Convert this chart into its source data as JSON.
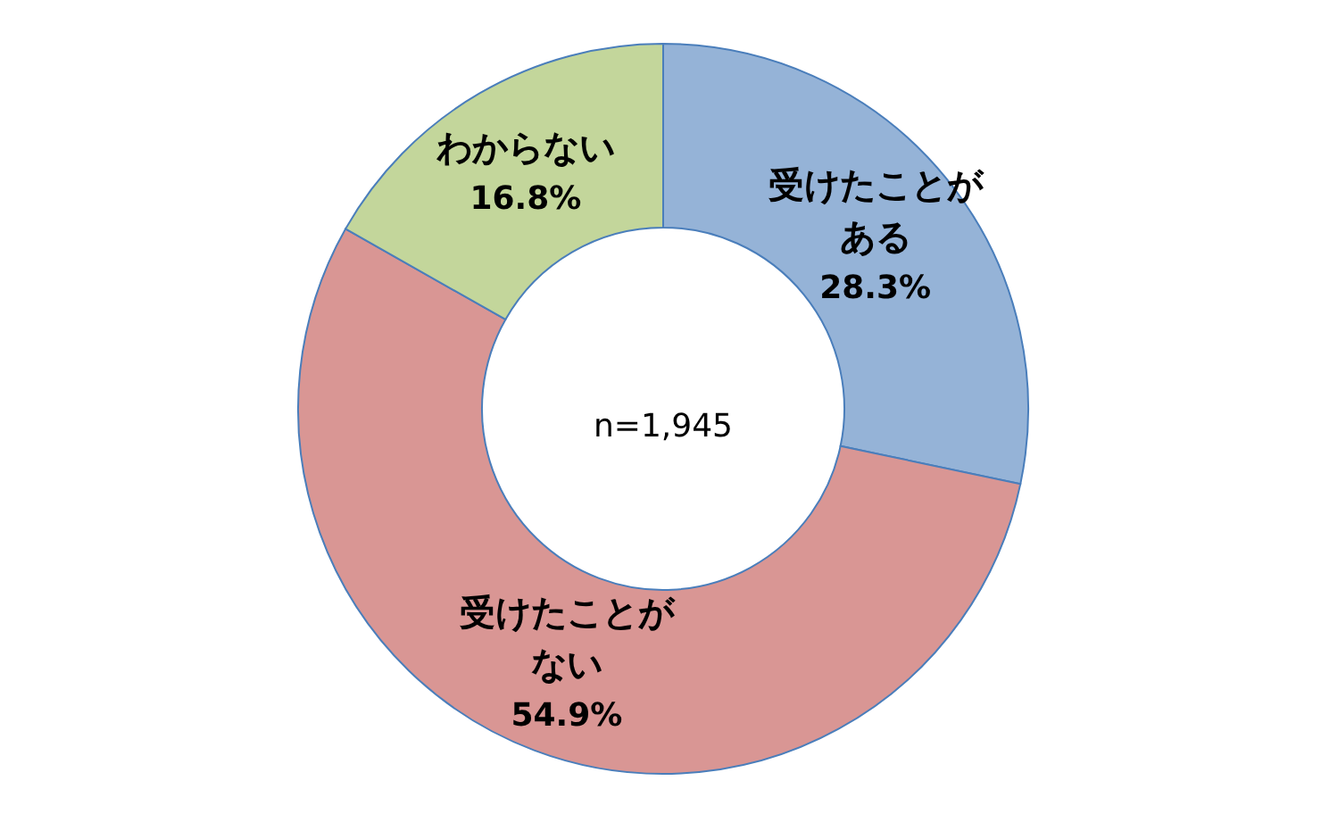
{
  "chart_data": {
    "type": "donut",
    "categories": [
      "受けたことがある",
      "受けたことがない",
      "わからない"
    ],
    "values": [
      28.3,
      54.9,
      16.8
    ],
    "value_labels": [
      "28.3%",
      "54.9%",
      "16.8%"
    ],
    "colors": [
      "#95b3d7",
      "#d99694",
      "#c3d69b"
    ],
    "annotations": [
      "n=1,945"
    ]
  }
}
